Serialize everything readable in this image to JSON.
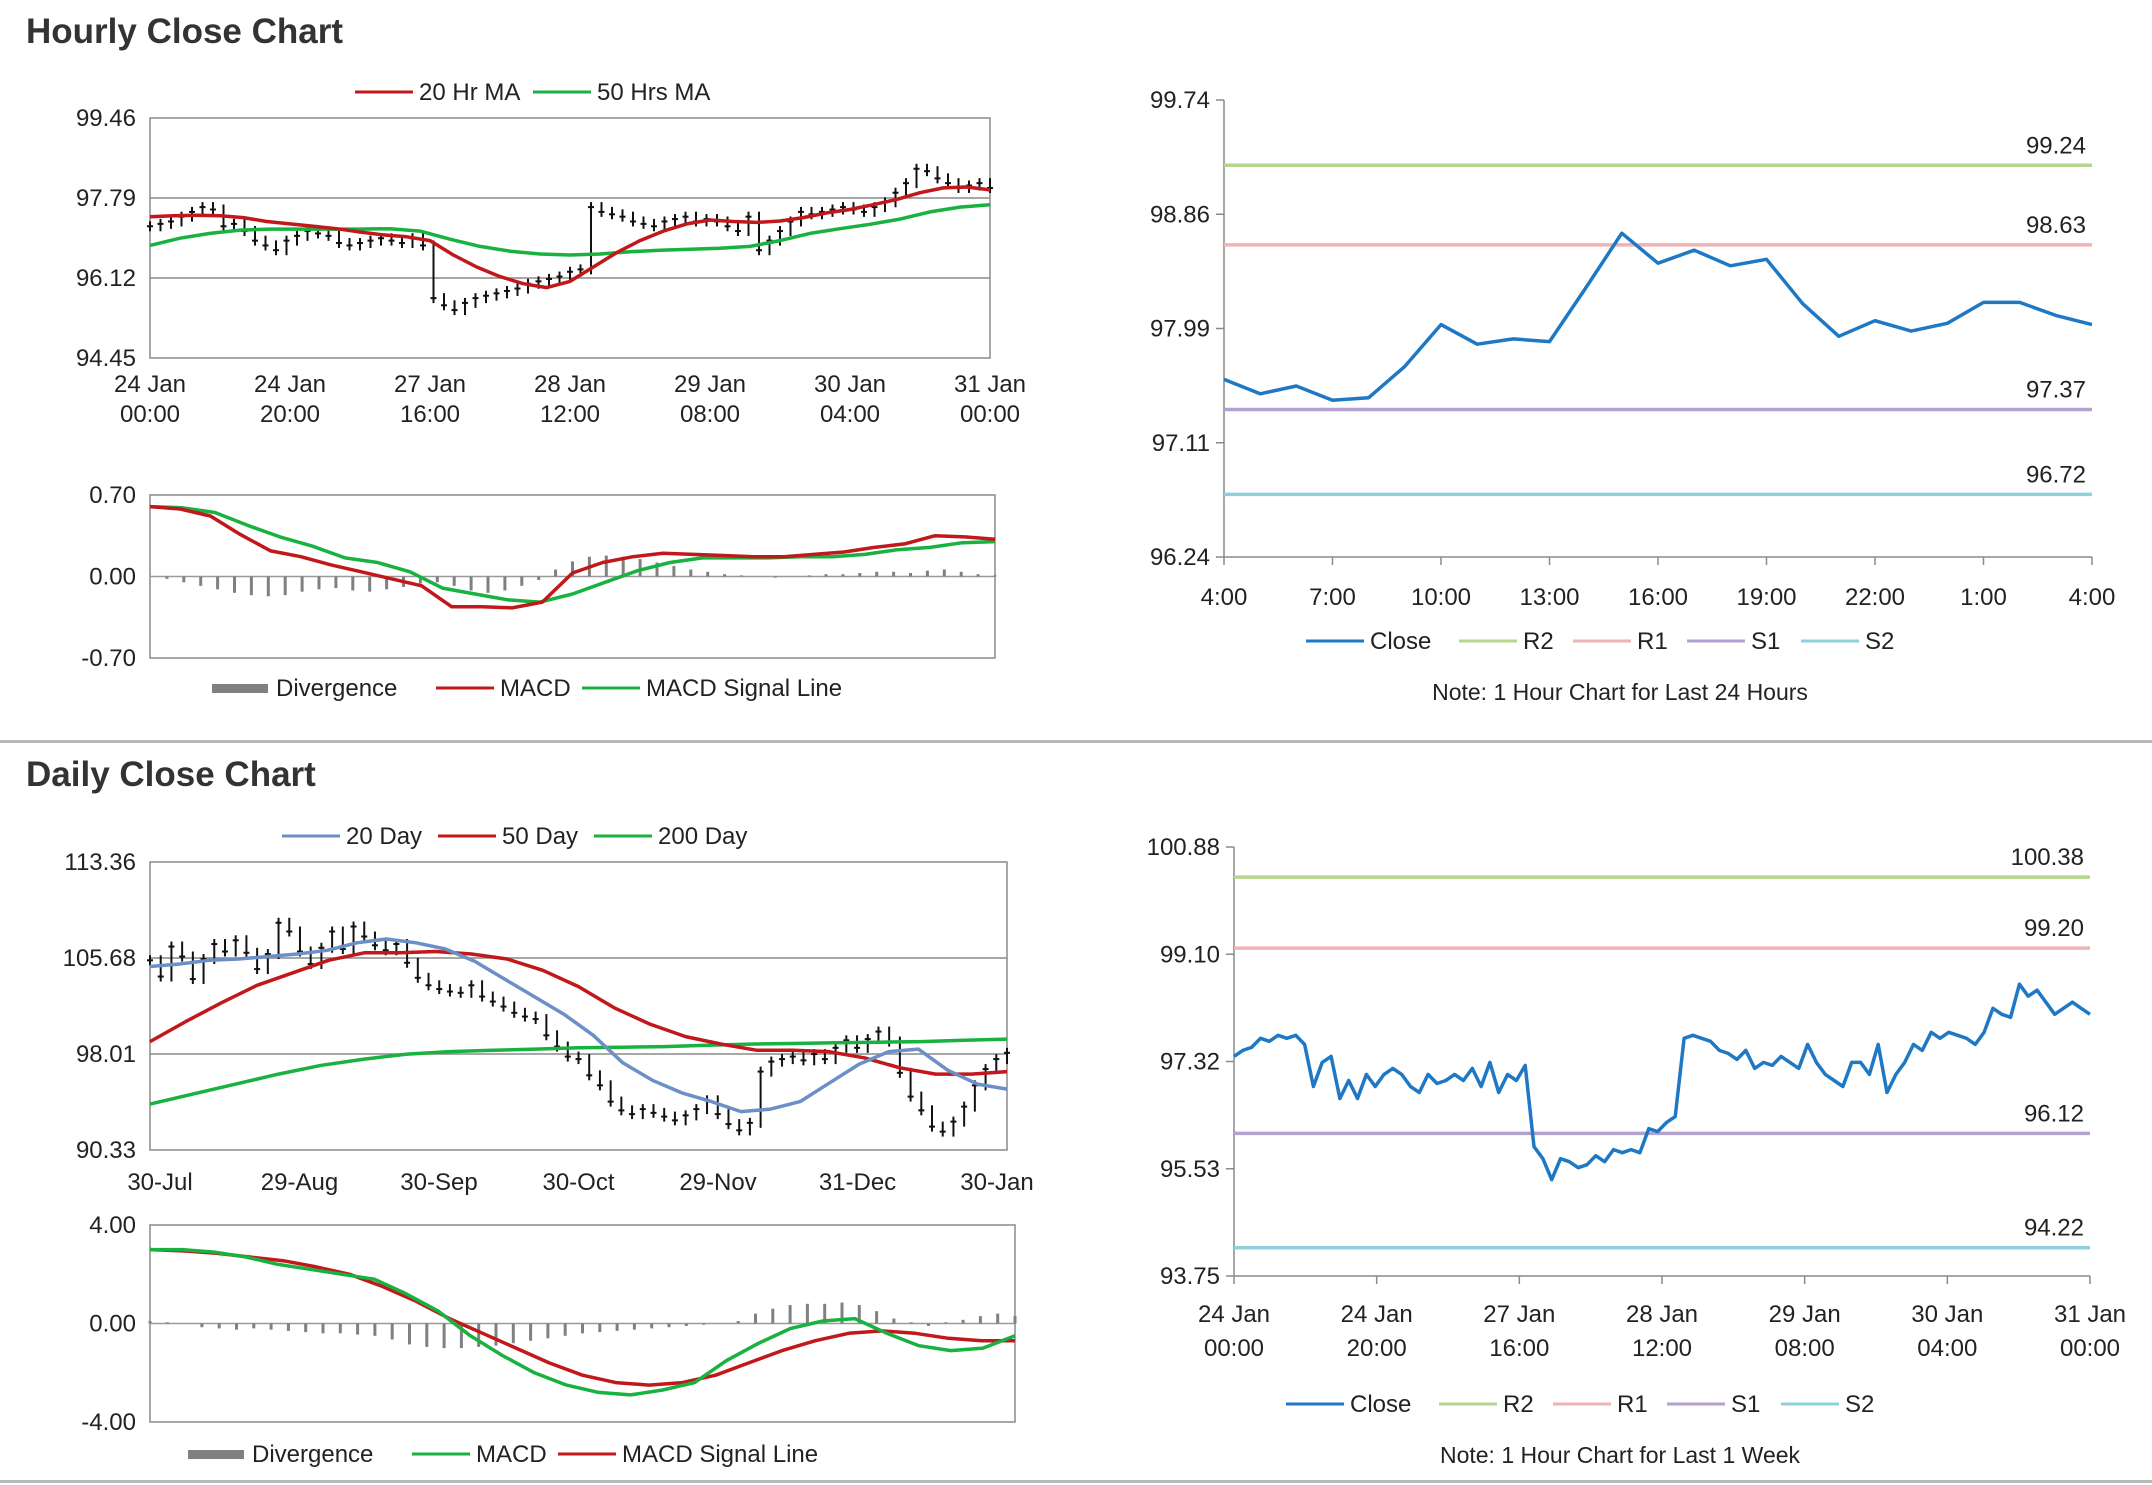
{
  "sections": {
    "hourly_title": "Hourly Close Chart",
    "daily_title": "Daily Close Chart"
  },
  "colors": {
    "ma_red": "#c0181b",
    "ma_green": "#19b13f",
    "ma_blue": "#6b8fc6",
    "close_blue": "#1f78c4",
    "r2": "#b5d68c",
    "r1": "#f0b3b3",
    "s1": "#b3a2cf",
    "s2": "#8fd0dd",
    "grid": "#8a8a8a",
    "divergence": "#808080"
  },
  "chart_data": [
    {
      "id": "hourly_price",
      "type": "line",
      "title": "",
      "ylim": [
        94.45,
        99.46
      ],
      "yticks": [
        "99.46",
        "97.79",
        "96.12",
        "94.45"
      ],
      "xticks": [
        [
          "24 Jan",
          "00:00"
        ],
        [
          "24 Jan",
          "20:00"
        ],
        [
          "27 Jan",
          "16:00"
        ],
        [
          "28 Jan",
          "12:00"
        ],
        [
          "29 Jan",
          "08:00"
        ],
        [
          "30 Jan",
          "04:00"
        ],
        [
          "31 Jan",
          "00:00"
        ]
      ],
      "legend": [
        "20 Hr MA",
        "50 Hrs MA"
      ],
      "series": [
        {
          "name": "Close",
          "style": "hl-bars",
          "values": [
            97.2,
            97.25,
            97.3,
            97.4,
            97.5,
            97.6,
            97.55,
            97.2,
            97.25,
            97.1,
            96.9,
            96.8,
            96.7,
            96.9,
            97.0,
            97.1,
            97.05,
            97.0,
            96.85,
            96.8,
            96.85,
            96.9,
            96.95,
            96.9,
            96.85,
            96.95,
            96.8,
            95.7,
            95.55,
            95.45,
            95.6,
            95.7,
            95.75,
            95.8,
            95.85,
            95.9,
            96.0,
            96.05,
            96.1,
            96.15,
            96.25,
            96.3,
            97.6,
            97.5,
            97.45,
            97.4,
            97.3,
            97.25,
            97.2,
            97.3,
            97.35,
            97.4,
            97.3,
            97.35,
            97.3,
            97.2,
            97.1,
            97.4,
            96.7,
            96.9,
            97.1,
            97.3,
            97.5,
            97.45,
            97.5,
            97.55,
            97.6,
            97.55,
            97.5,
            97.6,
            97.7,
            97.9,
            98.1,
            98.4,
            98.35,
            98.2,
            98.1,
            98.0,
            98.05,
            98.1,
            98.0
          ]
        },
        {
          "name": "20 Hr MA",
          "values": [
            97.4,
            97.42,
            97.43,
            97.42,
            97.38,
            97.3,
            97.25,
            97.2,
            97.15,
            97.08,
            97.02,
            96.98,
            96.9,
            96.6,
            96.35,
            96.15,
            96.0,
            95.92,
            96.05,
            96.35,
            96.65,
            96.9,
            97.1,
            97.25,
            97.33,
            97.3,
            97.28,
            97.31,
            97.38,
            97.48,
            97.55,
            97.65,
            97.76,
            97.9,
            98.0,
            98.02,
            97.96
          ]
        },
        {
          "name": "50 Hrs MA",
          "values": [
            96.8,
            96.95,
            97.05,
            97.12,
            97.14,
            97.14,
            97.14,
            97.14,
            97.15,
            97.1,
            96.93,
            96.78,
            96.68,
            96.62,
            96.6,
            96.62,
            96.67,
            96.7,
            96.72,
            96.74,
            96.78,
            96.9,
            97.05,
            97.15,
            97.24,
            97.35,
            97.5,
            97.6,
            97.65
          ]
        }
      ]
    },
    {
      "id": "hourly_macd",
      "type": "line",
      "title": "",
      "ylim": [
        -0.7,
        0.7
      ],
      "yticks": [
        "0.70",
        "0.00",
        "-0.70"
      ],
      "legend": [
        "Divergence",
        "MACD",
        "MACD Signal Line"
      ],
      "series": [
        {
          "name": "Divergence",
          "style": "bars",
          "values": [
            0.0,
            -0.02,
            -0.05,
            -0.08,
            -0.11,
            -0.14,
            -0.16,
            -0.17,
            -0.16,
            -0.13,
            -0.11,
            -0.1,
            -0.12,
            -0.13,
            -0.11,
            -0.09,
            -0.06,
            -0.05,
            -0.08,
            -0.12,
            -0.14,
            -0.12,
            -0.08,
            -0.03,
            0.06,
            0.13,
            0.17,
            0.18,
            0.17,
            0.15,
            0.12,
            0.09,
            0.06,
            0.04,
            0.02,
            0.01,
            0.0,
            -0.01,
            0.0,
            0.01,
            0.02,
            0.02,
            0.03,
            0.04,
            0.04,
            0.03,
            0.05,
            0.06,
            0.04,
            0.02,
            0.01
          ]
        },
        {
          "name": "MACD",
          "values": [
            0.6,
            0.58,
            0.52,
            0.36,
            0.22,
            0.17,
            0.1,
            0.04,
            -0.02,
            -0.08,
            -0.26,
            -0.26,
            -0.27,
            -0.22,
            0.03,
            0.12,
            0.17,
            0.2,
            0.19,
            0.18,
            0.17,
            0.17,
            0.19,
            0.21,
            0.25,
            0.28,
            0.35,
            0.34,
            0.32
          ]
        },
        {
          "name": "MACD Signal Line",
          "values": [
            0.6,
            0.59,
            0.55,
            0.44,
            0.34,
            0.26,
            0.16,
            0.12,
            0.04,
            -0.1,
            -0.15,
            -0.2,
            -0.22,
            -0.15,
            -0.05,
            0.05,
            0.12,
            0.16,
            0.16,
            0.16,
            0.17,
            0.17,
            0.19,
            0.23,
            0.25,
            0.29,
            0.3
          ]
        }
      ]
    },
    {
      "id": "hourly_close_24h",
      "type": "line",
      "title": "",
      "ylim": [
        96.24,
        99.74
      ],
      "yticks": [
        "99.74",
        "98.86",
        "97.99",
        "97.11",
        "96.24"
      ],
      "xticks": [
        "4:00",
        "7:00",
        "10:00",
        "13:00",
        "16:00",
        "19:00",
        "22:00",
        "1:00",
        "4:00"
      ],
      "x_hours": 24,
      "levels": [
        {
          "name": "R2",
          "value": 99.24,
          "label": "99.24"
        },
        {
          "name": "R1",
          "value": 98.63,
          "label": "98.63"
        },
        {
          "name": "S1",
          "value": 97.37,
          "label": "97.37"
        },
        {
          "name": "S2",
          "value": 96.72,
          "label": "96.72"
        }
      ],
      "legend": [
        "Close",
        "R2",
        "R1",
        "S1",
        "S2"
      ],
      "note": "Note: 1 Hour Chart for Last 24 Hours",
      "series": [
        {
          "name": "Close",
          "x": [
            0,
            1,
            2,
            3,
            4,
            5,
            6,
            7,
            8,
            9,
            10,
            11,
            12,
            13,
            14,
            15,
            16,
            17,
            18,
            19,
            20,
            21,
            22,
            23,
            24
          ],
          "values": [
            97.6,
            97.49,
            97.55,
            97.44,
            97.46,
            97.7,
            98.02,
            97.87,
            97.91,
            97.89,
            98.3,
            98.72,
            98.49,
            98.59,
            98.47,
            98.52,
            98.18,
            97.93,
            98.05,
            97.97,
            98.03,
            98.19,
            98.19,
            98.09,
            98.02
          ]
        }
      ]
    },
    {
      "id": "daily_price",
      "type": "line",
      "title": "",
      "ylim": [
        90.33,
        113.36
      ],
      "yticks": [
        "113.36",
        "105.68",
        "98.01",
        "90.33"
      ],
      "xticks": [
        "30-Jul",
        "29-Aug",
        "30-Sep",
        "30-Oct",
        "29-Nov",
        "31-Dec",
        "30-Jan"
      ],
      "legend": [
        "20 Day",
        "50 Day",
        "200 Day"
      ],
      "series": [
        {
          "name": "Close",
          "style": "hl-bars",
          "values": [
            105.5,
            104.2,
            106.6,
            105.8,
            104.0,
            105.6,
            106.8,
            106.2,
            107.1,
            106.1,
            104.8,
            106.0,
            108.5,
            107.8,
            106.2,
            105.2,
            106.5,
            107.8,
            106.4,
            108.2,
            107.4,
            106.7,
            106.3,
            106.8,
            105.3,
            104.1,
            103.5,
            103.2,
            103.0,
            102.9,
            103.5,
            102.6,
            102.2,
            101.8,
            101.3,
            101.0,
            100.8,
            99.5,
            98.6,
            97.8,
            97.6,
            96.3,
            95.5,
            94.2,
            93.5,
            93.2,
            93.6,
            93.3,
            93.0,
            92.7,
            93.1,
            93.6,
            94.3,
            93.2,
            92.4,
            91.9,
            92.5,
            96.6,
            97.4,
            97.6,
            97.8,
            97.5,
            98.0,
            97.6,
            98.5,
            99.1,
            98.5,
            99.2,
            99.8,
            99.0,
            96.5,
            94.6,
            93.5,
            92.2,
            91.8,
            92.6,
            93.8,
            95.5,
            96.8,
            97.6,
            98.1
          ]
        },
        {
          "name": "20 Day",
          "values": [
            105.0,
            105.2,
            105.5,
            105.6,
            105.8,
            106.0,
            106.3,
            106.9,
            107.2,
            106.9,
            106.4,
            105.4,
            104.0,
            102.6,
            101.2,
            99.5,
            97.3,
            95.9,
            94.9,
            94.2,
            93.4,
            93.6,
            94.2,
            95.7,
            97.2,
            98.2,
            98.4,
            96.7,
            95.6,
            95.2
          ]
        },
        {
          "name": "50 Day",
          "values": [
            99.0,
            100.6,
            102.1,
            103.5,
            104.5,
            105.5,
            106.1,
            106.1,
            106.2,
            106.0,
            105.6,
            104.7,
            103.4,
            101.7,
            100.4,
            99.4,
            98.8,
            98.3,
            98.3,
            98.2,
            97.7,
            96.9,
            96.4,
            96.4,
            96.6
          ]
        },
        {
          "name": "200 Day",
          "values": [
            94.0,
            94.8,
            95.6,
            96.4,
            97.1,
            97.6,
            98.0,
            98.2,
            98.3,
            98.4,
            98.5,
            98.55,
            98.6,
            98.7,
            98.8,
            98.85,
            98.9,
            98.95,
            99.0,
            99.1,
            99.2
          ]
        }
      ]
    },
    {
      "id": "daily_macd",
      "type": "line",
      "title": "",
      "ylim": [
        -4.0,
        4.0
      ],
      "yticks": [
        "4.00",
        "0.00",
        "-4.00"
      ],
      "legend": [
        "Divergence",
        "MACD",
        "MACD Signal Line"
      ],
      "series": [
        {
          "name": "Divergence",
          "style": "bars",
          "values": [
            0.1,
            0.05,
            0.0,
            -0.15,
            -0.2,
            -0.25,
            -0.2,
            -0.25,
            -0.3,
            -0.35,
            -0.4,
            -0.4,
            -0.45,
            -0.5,
            -0.65,
            -0.85,
            -0.95,
            -1.0,
            -1.0,
            -0.95,
            -0.9,
            -0.8,
            -0.7,
            -0.6,
            -0.5,
            -0.4,
            -0.35,
            -0.3,
            -0.25,
            -0.2,
            -0.15,
            -0.1,
            -0.05,
            0.0,
            0.1,
            0.4,
            0.6,
            0.75,
            0.8,
            0.8,
            0.85,
            0.75,
            0.5,
            0.2,
            0.05,
            -0.1,
            0.05,
            0.15,
            0.3,
            0.4,
            0.3
          ]
        },
        {
          "name": "MACD",
          "values": [
            3.0,
            3.0,
            2.9,
            2.7,
            2.4,
            2.2,
            2.0,
            1.8,
            1.2,
            0.5,
            -0.5,
            -1.3,
            -2.0,
            -2.5,
            -2.8,
            -2.9,
            -2.7,
            -2.4,
            -1.5,
            -0.8,
            -0.2,
            0.1,
            0.2,
            -0.4,
            -0.9,
            -1.1,
            -1.0,
            -0.5
          ]
        },
        {
          "name": "MACD Signal Line",
          "values": [
            3.0,
            2.95,
            2.85,
            2.7,
            2.55,
            2.3,
            2.0,
            1.5,
            0.9,
            0.2,
            -0.4,
            -1.0,
            -1.6,
            -2.1,
            -2.4,
            -2.5,
            -2.4,
            -2.1,
            -1.6,
            -1.1,
            -0.7,
            -0.4,
            -0.3,
            -0.4,
            -0.6,
            -0.7,
            -0.7
          ]
        }
      ]
    },
    {
      "id": "daily_close_1w",
      "type": "line",
      "title": "",
      "ylim": [
        93.75,
        100.88
      ],
      "yticks": [
        "100.88",
        "99.10",
        "97.32",
        "95.53",
        "93.75"
      ],
      "xticks": [
        [
          "24 Jan",
          "00:00"
        ],
        [
          "24 Jan",
          "20:00"
        ],
        [
          "27 Jan",
          "16:00"
        ],
        [
          "28 Jan",
          "12:00"
        ],
        [
          "29 Jan",
          "08:00"
        ],
        [
          "30 Jan",
          "04:00"
        ],
        [
          "31 Jan",
          "00:00"
        ]
      ],
      "levels": [
        {
          "name": "R2",
          "value": 100.38,
          "label": "100.38"
        },
        {
          "name": "R1",
          "value": 99.2,
          "label": "99.20"
        },
        {
          "name": "S1",
          "value": 96.12,
          "label": "96.12"
        },
        {
          "name": "S2",
          "value": 94.22,
          "label": "94.22"
        }
      ],
      "legend": [
        "Close",
        "R2",
        "R1",
        "S1",
        "S2"
      ],
      "note": "Note: 1 Hour Chart for Last 1 Week",
      "series": [
        {
          "name": "Close",
          "values": [
            97.4,
            97.5,
            97.55,
            97.7,
            97.65,
            97.75,
            97.7,
            97.75,
            97.6,
            96.9,
            97.3,
            97.4,
            96.7,
            97.0,
            96.7,
            97.1,
            96.9,
            97.1,
            97.2,
            97.1,
            96.9,
            96.8,
            97.1,
            96.95,
            97.0,
            97.1,
            97.0,
            97.2,
            96.9,
            97.3,
            96.8,
            97.1,
            97.0,
            97.25,
            95.9,
            95.7,
            95.35,
            95.7,
            95.65,
            95.55,
            95.6,
            95.75,
            95.65,
            95.85,
            95.8,
            95.85,
            95.8,
            96.2,
            96.15,
            96.3,
            96.4,
            97.7,
            97.75,
            97.7,
            97.65,
            97.5,
            97.45,
            97.35,
            97.5,
            97.2,
            97.3,
            97.25,
            97.4,
            97.3,
            97.2,
            97.6,
            97.3,
            97.1,
            97.0,
            96.9,
            97.3,
            97.3,
            97.1,
            97.6,
            96.8,
            97.1,
            97.3,
            97.6,
            97.5,
            97.8,
            97.7,
            97.8,
            97.75,
            97.7,
            97.6,
            97.8,
            98.2,
            98.1,
            98.05,
            98.6,
            98.4,
            98.5,
            98.3,
            98.1,
            98.2,
            98.3,
            98.2,
            98.1
          ]
        }
      ]
    }
  ]
}
